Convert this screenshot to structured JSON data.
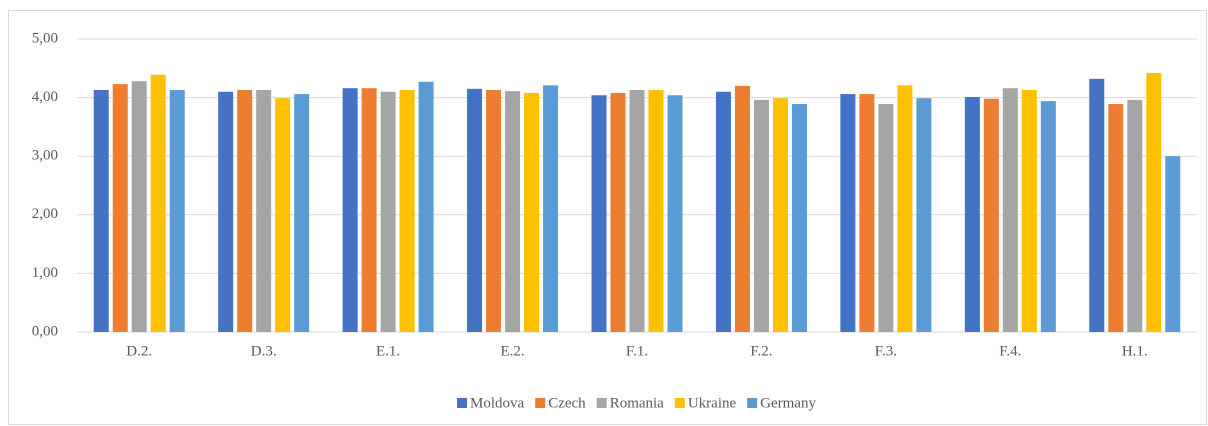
{
  "chart_data": {
    "type": "bar",
    "categories": [
      "D.2.",
      "D.3.",
      "E.1.",
      "E.2.",
      "F.1.",
      "F.2.",
      "F.3.",
      "F.4.",
      "H.1."
    ],
    "series": [
      {
        "name": "Moldova",
        "color": "#4472c4",
        "values": [
          4.13,
          4.1,
          4.16,
          4.15,
          4.04,
          4.1,
          4.06,
          4.01,
          4.32
        ]
      },
      {
        "name": "Czech",
        "color": "#ed7d31",
        "values": [
          4.23,
          4.13,
          4.16,
          4.13,
          4.08,
          4.2,
          4.06,
          3.98,
          3.89
        ]
      },
      {
        "name": "Romania",
        "color": "#a5a5a5",
        "values": [
          4.28,
          4.13,
          4.1,
          4.11,
          4.13,
          3.96,
          3.89,
          4.16,
          3.96
        ]
      },
      {
        "name": "Ukraine",
        "color": "#ffc000",
        "values": [
          4.39,
          3.99,
          4.13,
          4.08,
          4.13,
          3.99,
          4.21,
          4.13,
          4.42
        ]
      },
      {
        "name": "Germany",
        "color": "#5b9bd5",
        "values": [
          4.13,
          4.06,
          4.27,
          4.21,
          4.04,
          3.89,
          3.99,
          3.94,
          3.0
        ]
      }
    ],
    "ylim": [
      0,
      5
    ],
    "yticks": [
      {
        "value": 0,
        "label": "0,00"
      },
      {
        "value": 1,
        "label": "1,00"
      },
      {
        "value": 2,
        "label": "2,00"
      },
      {
        "value": 3,
        "label": "3,00"
      },
      {
        "value": 4,
        "label": "4,00"
      },
      {
        "value": 5,
        "label": "5,00"
      }
    ],
    "grid": true,
    "legend": "bottom"
  }
}
